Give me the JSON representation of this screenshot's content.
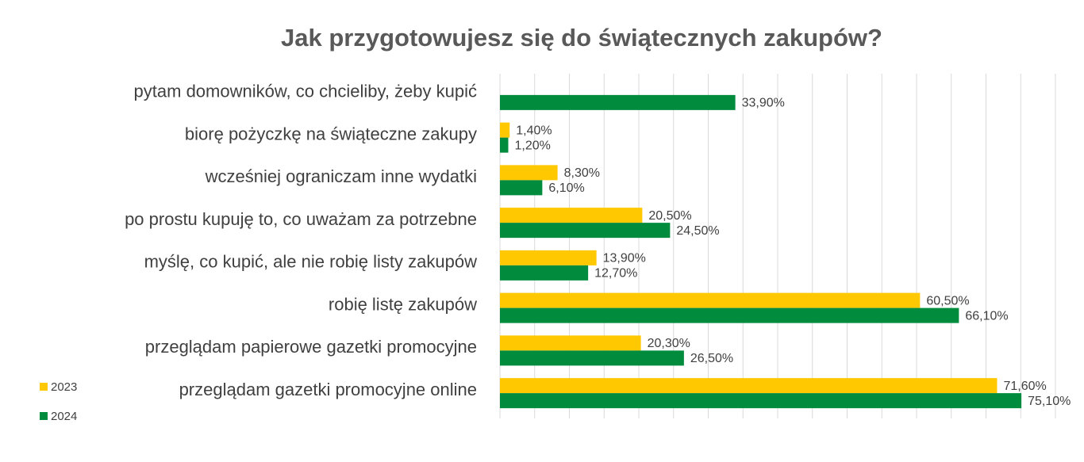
{
  "chart_data": {
    "type": "bar",
    "orientation": "horizontal",
    "title": "Jak przygotowujesz się do świątecznych zakupów?",
    "categories": [
      "pytam domowników, co chcieliby, żeby kupić",
      "biorę pożyczkę na świąteczne zakupy",
      "wcześniej ograniczam inne wydatki",
      "po prostu  kupuję to, co uważam za potrzebne",
      "myślę, co kupić, ale nie robię listy zakupów",
      "robię listę zakupów",
      "przeglądam papierowe gazetki promocyjne",
      "przeglądam gazetki promocyjne online"
    ],
    "series": [
      {
        "name": "2023",
        "color": "#FFC800",
        "values": [
          null,
          1.4,
          8.3,
          20.5,
          13.9,
          60.5,
          20.3,
          71.6
        ],
        "labels": [
          null,
          "1,40%",
          "8,30%",
          "20,50%",
          "13,90%",
          "60,50%",
          "20,30%",
          "71,60%"
        ]
      },
      {
        "name": "2024",
        "color": "#008C3C",
        "values": [
          33.9,
          1.2,
          6.1,
          24.5,
          12.7,
          66.1,
          26.5,
          75.1
        ],
        "labels": [
          "33,90%",
          "1,20%",
          "6,10%",
          "24,50%",
          "12,70%",
          "66,10%",
          "26,50%",
          "75,10%"
        ]
      }
    ],
    "xlim": [
      0,
      80
    ],
    "gridlines": true,
    "legend_position": "bottom-left",
    "xlabel": "",
    "ylabel": ""
  }
}
